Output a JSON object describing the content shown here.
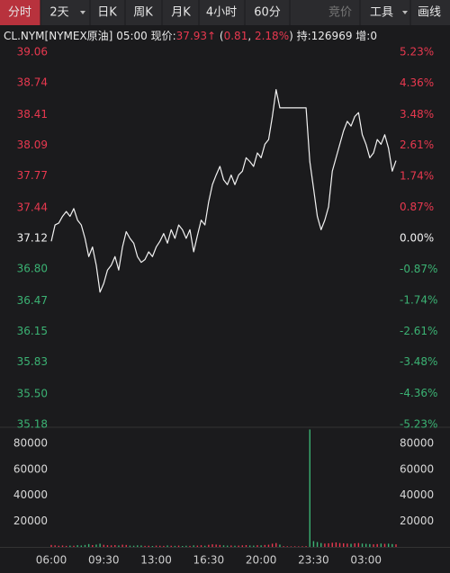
{
  "toolbar": {
    "tabs": [
      "分时",
      "2天",
      "日K",
      "周K",
      "月K",
      "4小时",
      "60分"
    ],
    "right": [
      "竞价",
      "工具",
      "画线"
    ]
  },
  "quote": {
    "symbol": "CL.NYM[NYMEX原油]",
    "time": "05:00",
    "price_label": "现价:",
    "price": "37.93",
    "price_arrow": "↑",
    "change_parts": [
      "(",
      "0.81",
      ", ",
      "2.18%",
      ")"
    ],
    "open_interest": "持:126969",
    "increase": "增:0"
  },
  "chart_data": [
    {
      "type": "line",
      "color": "#f2f2f2",
      "values": [
        37.09,
        37.26,
        37.28,
        37.35,
        37.4,
        37.35,
        37.43,
        37.31,
        37.26,
        37.12,
        36.93,
        37.03,
        36.84,
        36.56,
        36.65,
        36.79,
        36.84,
        36.93,
        36.79,
        37.03,
        37.19,
        37.12,
        37.07,
        36.93,
        36.87,
        36.9,
        36.98,
        36.93,
        37.03,
        37.09,
        37.17,
        37.07,
        37.21,
        37.12,
        37.26,
        37.21,
        37.12,
        37.21,
        36.98,
        37.15,
        37.31,
        37.26,
        37.5,
        37.68,
        37.78,
        37.87,
        37.73,
        37.68,
        37.78,
        37.68,
        37.78,
        37.82,
        37.96,
        37.92,
        37.87,
        38.01,
        37.96,
        38.1,
        38.15,
        38.39,
        38.67,
        38.48,
        38.48,
        38.48,
        38.48,
        38.48,
        38.48,
        38.48,
        38.48,
        37.92,
        37.64,
        37.35,
        37.21,
        37.31,
        37.45,
        37.82,
        37.96,
        38.1,
        38.24,
        38.34,
        38.29,
        38.39,
        38.43,
        38.2,
        38.1,
        37.96,
        38.01,
        38.15,
        38.1,
        38.2,
        38.06,
        37.82,
        37.93
      ],
      "ylim": [
        35.18,
        39.06
      ],
      "yticks": [
        39.06,
        38.74,
        38.41,
        38.09,
        37.77,
        37.44,
        37.12,
        {
          "value": 36.8,
          "label": "36.80"
        },
        36.47,
        36.15,
        35.83,
        {
          "value": 35.5,
          "label": "35.50"
        },
        35.18
      ],
      "y2lim": [
        -5.23,
        5.23
      ],
      "y2ticks": [
        {
          "value": 5.23,
          "label": "5.23%"
        },
        {
          "value": 4.36,
          "label": "4.36%"
        },
        {
          "value": 3.48,
          "label": "3.48%"
        },
        {
          "value": 2.61,
          "label": "2.61%"
        },
        {
          "value": 1.74,
          "label": "1.74%"
        },
        {
          "value": 0.87,
          "label": "0.87%"
        },
        {
          "value": 0,
          "label": "0.00%"
        },
        {
          "value": -0.87,
          "label": "-0.87%"
        },
        {
          "value": -1.74,
          "label": "-1.74%"
        },
        {
          "value": -2.61,
          "label": "-2.61%"
        },
        {
          "value": -3.48,
          "label": "-3.48%"
        },
        {
          "value": -4.36,
          "label": "-4.36%"
        },
        {
          "value": -5.23,
          "label": "-5.23%"
        }
      ],
      "up_color": "#e8384f",
      "down_color": "#3bb273",
      "flat_color": "#f2f2f2",
      "grid": false
    },
    {
      "type": "bar",
      "values": [
        1500,
        1200,
        900,
        1100,
        800,
        1000,
        900,
        1300,
        1100,
        1500,
        2200,
        1400,
        1800,
        2500,
        1600,
        1300,
        1200,
        1400,
        1100,
        1700,
        1500,
        1000,
        900,
        1200,
        1100,
        800,
        900,
        700,
        1000,
        900,
        800,
        1100,
        900,
        800,
        1000,
        700,
        900,
        800,
        1200,
        1000,
        1300,
        900,
        1600,
        2000,
        1800,
        1500,
        1200,
        1000,
        1100,
        900,
        1000,
        1200,
        1400,
        1100,
        1000,
        1300,
        1200,
        1500,
        1700,
        2500,
        3000,
        1800,
        600,
        500,
        400,
        500,
        400,
        500,
        600,
        91000,
        4500,
        3800,
        3000,
        2600,
        2800,
        3200,
        3500,
        3000,
        2800,
        2600,
        2400,
        2800,
        3000,
        2600,
        2400,
        2200,
        2000,
        2200,
        2600,
        2400,
        2500,
        2200,
        2000
      ],
      "ylim": [
        0,
        92000
      ],
      "yticks": [
        20000,
        40000,
        60000,
        80000
      ],
      "xticks": [
        {
          "value": 0,
          "label": "06:00"
        },
        {
          "value": 14,
          "label": "09:30"
        },
        {
          "value": 28,
          "label": "13:00"
        },
        {
          "value": 42,
          "label": "16:30"
        },
        {
          "value": 56,
          "label": "20:00"
        },
        {
          "value": 70,
          "label": "23:30"
        },
        {
          "value": 84,
          "label": "03:00"
        }
      ],
      "grid": false
    }
  ]
}
